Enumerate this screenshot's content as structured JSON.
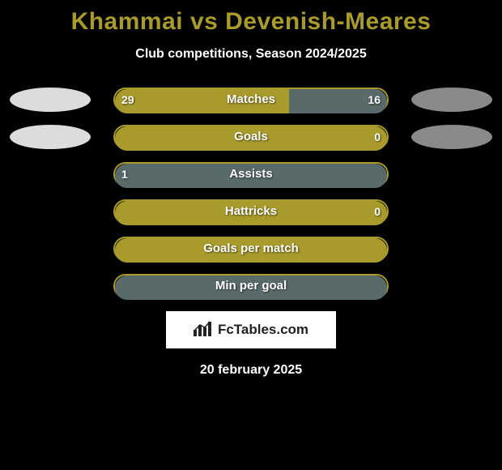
{
  "background_color": "#000000",
  "title": {
    "text": "Khammai vs Devenish-Meares",
    "color": "#a89b2c",
    "fontsize": 30
  },
  "subtitle": {
    "text": "Club competitions, Season 2024/2025",
    "color": "#ffffff",
    "fontsize": 16
  },
  "track_border_color": "#a89b2c",
  "left_color": "#a89b2c",
  "right_color": "#596a6a",
  "club_left": {
    "color": "#dcdcdc",
    "visible": true
  },
  "club_right": {
    "color": "#8a8a8a",
    "visible": true
  },
  "rows": [
    {
      "label": "Matches",
      "left": "29",
      "right": "16",
      "left_pct": 64,
      "right_pct": 36,
      "show_clubs": true
    },
    {
      "label": "Goals",
      "left": "",
      "right": "0",
      "left_pct": 100,
      "right_pct": 0,
      "show_clubs": true
    },
    {
      "label": "Assists",
      "left": "1",
      "right": "",
      "left_pct": 0,
      "right_pct": 100,
      "show_clubs": false
    },
    {
      "label": "Hattricks",
      "left": "",
      "right": "0",
      "left_pct": 100,
      "right_pct": 0,
      "show_clubs": false
    },
    {
      "label": "Goals per match",
      "left": "",
      "right": "",
      "left_pct": 100,
      "right_pct": 0,
      "show_clubs": false
    },
    {
      "label": "Min per goal",
      "left": "",
      "right": "",
      "left_pct": 0,
      "right_pct": 100,
      "show_clubs": false
    }
  ],
  "footer": {
    "logo_text": "FcTables.com",
    "date": "20 february 2025"
  }
}
